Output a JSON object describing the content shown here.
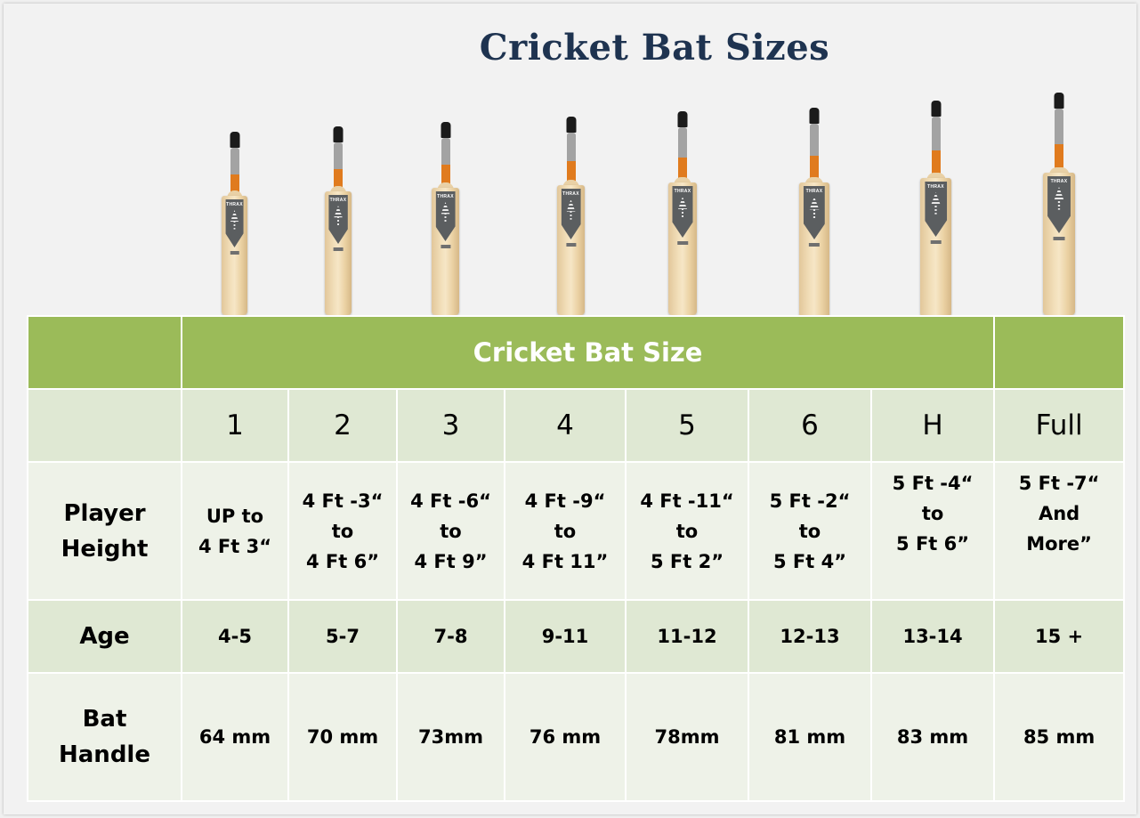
{
  "title": "Cricket Bat Sizes",
  "bat_brand": "THRAX",
  "table": {
    "header": "Cricket Bat Size",
    "row_labels": {
      "height": "Player\nHeight",
      "age": "Age",
      "handle": "Bat\nHandle"
    },
    "sizes": [
      "1",
      "2",
      "3",
      "4",
      "5",
      "6",
      "H",
      "Full"
    ],
    "heights": [
      "UP to\n4 Ft 3“",
      "4 Ft -3“\nto\n4 Ft  6”",
      "4 Ft -6“\nto\n4 Ft  9”",
      "4 Ft -9“\nto\n4 Ft   11”",
      "4 Ft -11“\nto\n5 Ft  2”",
      "5 Ft -2“\nto\n5 Ft 4”",
      "5 Ft -4“\nto\n5 Ft 6”",
      "5 Ft -7“\nAnd\nMore”"
    ],
    "ages": [
      "4-5",
      "5-7",
      "7-8",
      "9-11",
      "11-12",
      "12-13",
      "13-14",
      "15 +"
    ],
    "handles": [
      "64 mm",
      "70 mm",
      "73mm",
      "76 mm",
      "78mm",
      "81 mm",
      "83 mm",
      "85 mm"
    ]
  },
  "colors": {
    "header_band": "#9bbb59",
    "title": "#1e3350",
    "row_dark": "#dfe8d3",
    "row_light": "#eef2e8"
  }
}
